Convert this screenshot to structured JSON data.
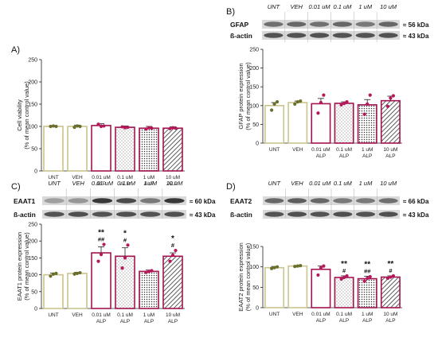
{
  "panels": [
    {
      "letter": "A)"
    },
    {
      "letter": "B)"
    },
    {
      "letter": "C)"
    },
    {
      "letter": "D)"
    }
  ],
  "blots": [
    {
      "protein": "GFAP",
      "protein_kda": "≈ 56 kDa",
      "control": "ß-actin",
      "control_kda": "≈ 43 kDa",
      "lanes": [
        "UNT",
        "VEH",
        "0.01 uM",
        "0.1 uM",
        "1 uM",
        "10 uM"
      ]
    },
    {
      "protein": "EAAT1",
      "protein_kda": "≈ 60 kDa",
      "control": "ß-actin",
      "control_kda": "≈ 43 kDa",
      "lanes": [
        "UNT",
        "VEH",
        "0.01 uM",
        "0.1 uM",
        "1 uM",
        "10 uM"
      ]
    },
    {
      "protein": "EAAT2",
      "protein_kda": "≈ 66 kDa",
      "control": "ß-actin",
      "control_kda": "≈ 43 kDa",
      "lanes": [
        "UNT",
        "VEH",
        "0.01 uM",
        "0.1 uM",
        "1 uM",
        "10 uM"
      ]
    }
  ],
  "colors": {
    "control_bar": "#c9c58d",
    "alp_bar": "#a3134f",
    "control_point": "#6b6e2a",
    "alp_point": "#b5175a"
  },
  "chart_data": [
    {
      "type": "bar",
      "ylabel": "Cell viability\n(% of mean control value)",
      "ylim": [
        0,
        250
      ],
      "yticks": [
        0,
        50,
        100,
        150,
        200,
        250
      ],
      "categories": [
        "UNT",
        "VEH",
        "0.01 uM\nALP",
        "0.1 uM\nALP",
        "1 uM\nALP",
        "10 uM\nALP"
      ],
      "values": [
        100,
        100,
        102,
        98,
        96,
        96
      ],
      "errors": [
        2,
        3,
        4,
        3,
        4,
        3
      ],
      "points": [
        [
          100,
          101,
          100
        ],
        [
          98,
          101,
          100
        ],
        [
          105,
          100,
          101
        ],
        [
          99,
          97,
          98
        ],
        [
          94,
          97,
          96
        ],
        [
          95,
          97,
          96
        ]
      ],
      "patterns": [
        "none",
        "none",
        "none",
        "dots",
        "dense-dots",
        "hatch"
      ],
      "significance": [
        "",
        "",
        "",
        "",
        "",
        ""
      ]
    },
    {
      "type": "bar",
      "ylabel": "GFAP protein expression\n(% of mean control value)",
      "ylim": [
        0,
        250
      ],
      "yticks": [
        0,
        50,
        100,
        150,
        200,
        250
      ],
      "categories": [
        "UNT",
        "VEH",
        "0.01 uM\nALP",
        "0.1 uM\nALP",
        "1 uM\nALP",
        "10 uM\nALP"
      ],
      "values": [
        100,
        108,
        105,
        106,
        102,
        113
      ],
      "errors": [
        8,
        4,
        14,
        4,
        14,
        12
      ],
      "points": [
        [
          88,
          104,
          110
        ],
        [
          104,
          110,
          112
        ],
        [
          80,
          108,
          128
        ],
        [
          102,
          106,
          110
        ],
        [
          77,
          104,
          128
        ],
        [
          98,
          120,
          126
        ]
      ],
      "patterns": [
        "none",
        "none",
        "none",
        "dots",
        "dense-dots",
        "hatch"
      ],
      "significance": [
        "",
        "",
        "",
        "",
        "",
        ""
      ]
    },
    {
      "type": "bar",
      "ylabel": "EAAT1 protein expression\n(% of mean control value)",
      "ylim": [
        0,
        250
      ],
      "yticks": [
        0,
        50,
        100,
        150,
        200,
        250
      ],
      "categories": [
        "UNT",
        "VEH",
        "0.01 uM\nALP",
        "0.1 uM\nALP",
        "1 uM\nALP",
        "10 uM\nALP"
      ],
      "values": [
        100,
        104,
        165,
        155,
        110,
        155
      ],
      "errors": [
        5,
        3,
        18,
        25,
        4,
        10
      ],
      "points": [
        [
          96,
          102,
          104
        ],
        [
          102,
          104,
          106
        ],
        [
          140,
          160,
          190
        ],
        [
          120,
          150,
          188
        ],
        [
          107,
          110,
          112
        ],
        [
          140,
          158,
          172
        ]
      ],
      "patterns": [
        "none",
        "none",
        "none",
        "dots",
        "dense-dots",
        "hatch"
      ],
      "significance": [
        "",
        "",
        "**\n##",
        "*\n#",
        "",
        "*\n#"
      ]
    },
    {
      "type": "bar",
      "ylabel": "EAAT2 protein expression\n(% of mean control value)",
      "ylim": [
        0,
        150
      ],
      "yticks": [
        0,
        50,
        100,
        150
      ],
      "categories": [
        "UNT",
        "VEH",
        "0.01 uM\nALP",
        "0.1 uM\nALP",
        "1 uM\nALP",
        "10 uM\nALP"
      ],
      "values": [
        98,
        102,
        94,
        74,
        71,
        75
      ],
      "errors": [
        3,
        1,
        8,
        4,
        6,
        3
      ],
      "points": [
        [
          96,
          98,
          100
        ],
        [
          101,
          102,
          103
        ],
        [
          80,
          98,
          102
        ],
        [
          70,
          74,
          78
        ],
        [
          65,
          72,
          76
        ],
        [
          72,
          75,
          78
        ]
      ],
      "patterns": [
        "none",
        "none",
        "none",
        "dots",
        "dense-dots",
        "hatch"
      ],
      "significance": [
        "",
        "",
        "",
        "**\n#",
        "**\n##",
        "**\n#"
      ]
    }
  ]
}
